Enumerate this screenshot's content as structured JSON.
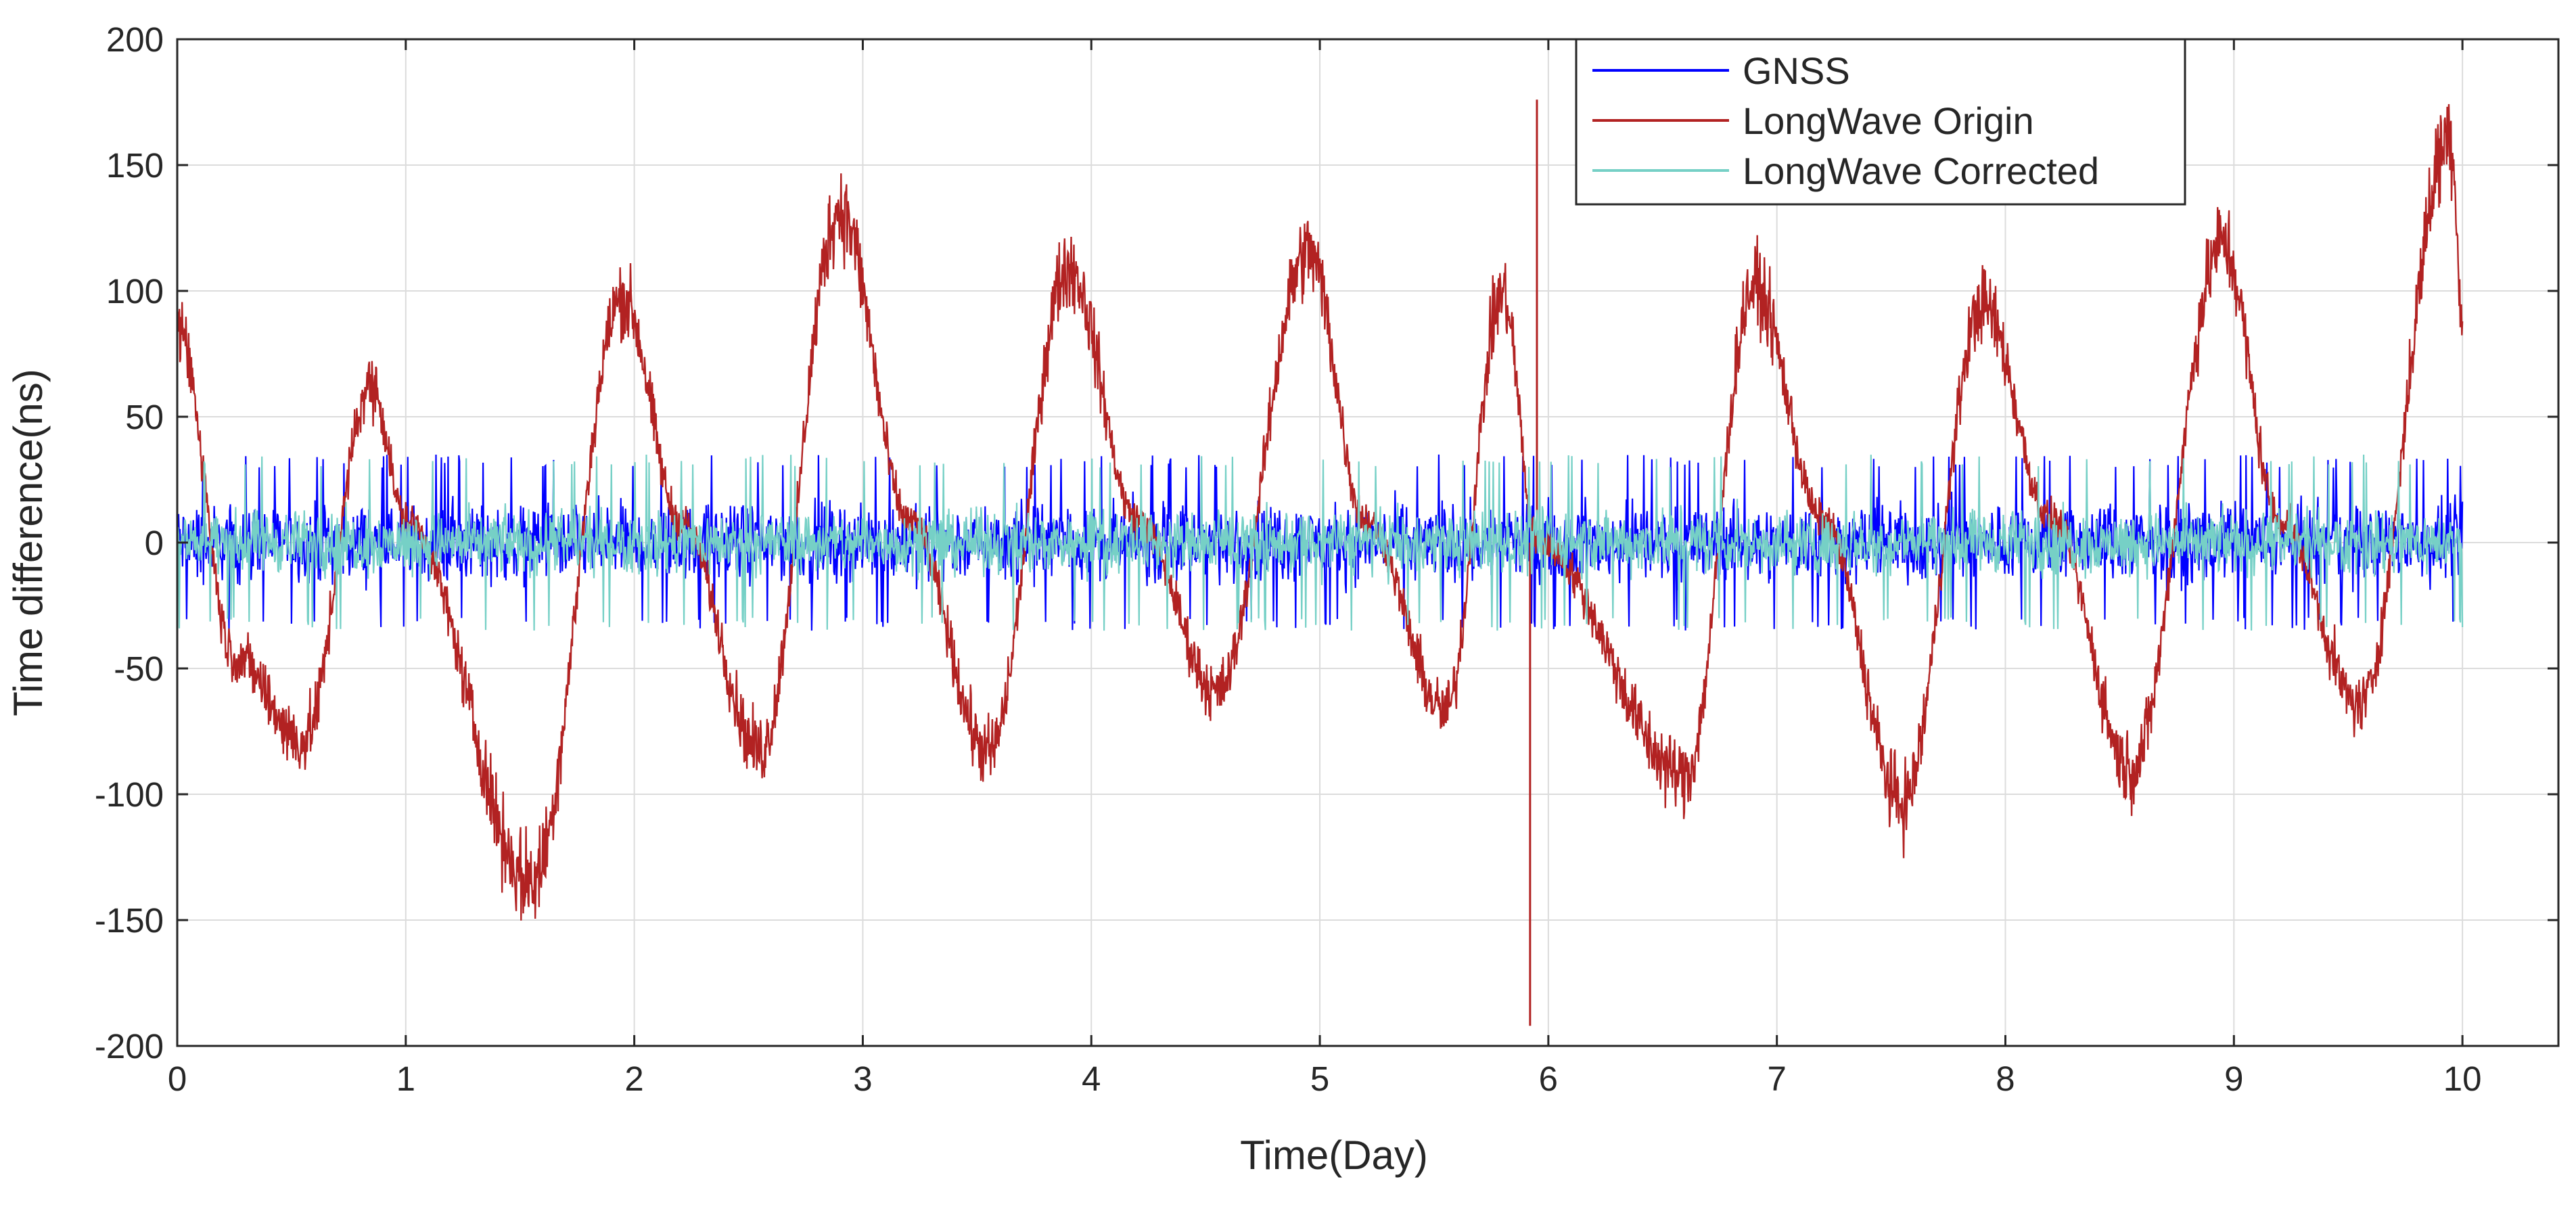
{
  "chart_data": {
    "type": "line",
    "title": "",
    "xlabel": "Time(Day)",
    "ylabel": "Time difference(ns)",
    "xlim": [
      0,
      10.42
    ],
    "ylim": [
      -200,
      200
    ],
    "x_ticks": [
      0,
      1,
      2,
      3,
      4,
      5,
      6,
      7,
      8,
      9,
      10
    ],
    "y_ticks": [
      200,
      150,
      100,
      50,
      0,
      -50,
      -100,
      -150,
      -200
    ],
    "x_tick_labels": [
      "0",
      "1",
      "2",
      "3",
      "4",
      "5",
      "6",
      "7",
      "8",
      "9",
      "10"
    ],
    "y_tick_labels": [
      "200",
      "150",
      "100",
      "50",
      "0",
      "-50",
      "-100",
      "-150",
      "-200"
    ],
    "grid": true,
    "legend_position": "top-right",
    "series": [
      {
        "name": "GNSS",
        "color": "#0000ff",
        "style": "noise band",
        "approx_range": [
          -35,
          35
        ],
        "note": "noisy band centred near 0 ns"
      },
      {
        "name": "LongWave Origin",
        "color": "#b22222",
        "style": "diurnal oscillation",
        "envelope_points": [
          {
            "x": 0.0,
            "y": 95
          },
          {
            "x": 0.25,
            "y": -50
          },
          {
            "x": 0.55,
            "y": -88
          },
          {
            "x": 0.85,
            "y": 70
          },
          {
            "x": 1.0,
            "y": 10
          },
          {
            "x": 1.55,
            "y": -150
          },
          {
            "x": 1.95,
            "y": 108
          },
          {
            "x": 2.2,
            "y": 10
          },
          {
            "x": 2.55,
            "y": -92
          },
          {
            "x": 2.9,
            "y": 147
          },
          {
            "x": 3.2,
            "y": 10
          },
          {
            "x": 3.55,
            "y": -93
          },
          {
            "x": 3.9,
            "y": 122
          },
          {
            "x": 4.2,
            "y": 10
          },
          {
            "x": 4.55,
            "y": -66
          },
          {
            "x": 4.95,
            "y": 128
          },
          {
            "x": 5.2,
            "y": 10
          },
          {
            "x": 5.55,
            "y": -75
          },
          {
            "x": 5.8,
            "y": 110
          },
          {
            "x": 5.95,
            "y": 0
          },
          {
            "x": 6.6,
            "y": -103
          },
          {
            "x": 6.9,
            "y": 113
          },
          {
            "x": 7.2,
            "y": 10
          },
          {
            "x": 7.55,
            "y": -115
          },
          {
            "x": 7.9,
            "y": 105
          },
          {
            "x": 8.2,
            "y": 10
          },
          {
            "x": 8.55,
            "y": -100
          },
          {
            "x": 8.95,
            "y": 132
          },
          {
            "x": 9.2,
            "y": 10
          },
          {
            "x": 9.55,
            "y": -72
          },
          {
            "x": 9.95,
            "y": 181
          },
          {
            "x": 10.0,
            "y": 100
          }
        ],
        "spikes": [
          {
            "x": 5.92,
            "y": -192
          },
          {
            "x": 5.95,
            "y": 176
          }
        ]
      },
      {
        "name": "LongWave Corrected",
        "color": "#76d0c6",
        "style": "noise band",
        "approx_range": [
          -35,
          35
        ],
        "note": "noisy band centred near 0 ns, drawn on top"
      }
    ]
  }
}
